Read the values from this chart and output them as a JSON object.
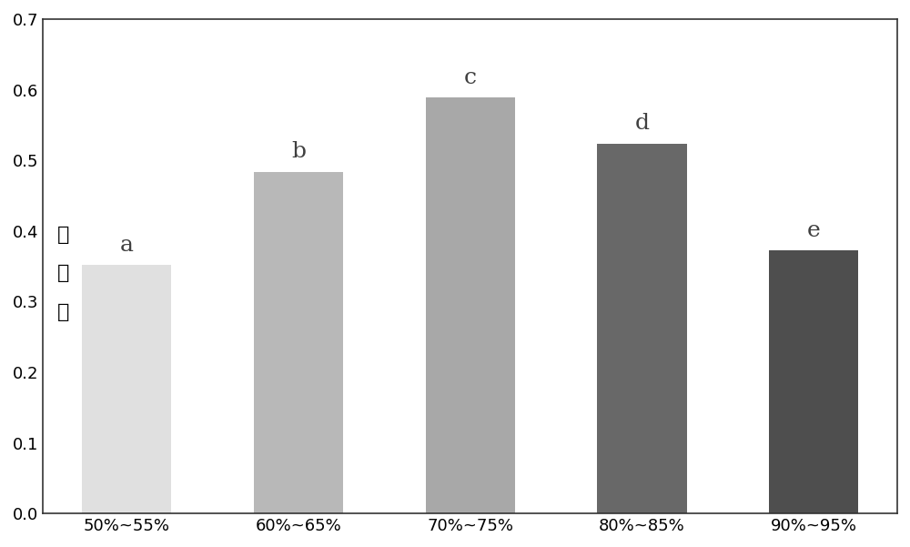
{
  "categories": [
    "50%~55%",
    "60%~65%",
    "70%~75%",
    "80%~85%",
    "90%~95%"
  ],
  "values": [
    0.352,
    0.484,
    0.589,
    0.524,
    0.372
  ],
  "bar_colors": [
    "#e0e0e0",
    "#b8b8b8",
    "#a8a8a8",
    "#686868",
    "#4e4e4e"
  ],
  "labels": [
    "a",
    "b",
    "c",
    "d",
    "e"
  ],
  "ylabel": "去除率",
  "ylim": [
    0,
    0.7
  ],
  "yticks": [
    0,
    0.1,
    0.2,
    0.3,
    0.4,
    0.5,
    0.6,
    0.7
  ],
  "background_color": "#ffffff",
  "label_fontsize": 18,
  "tick_fontsize": 13,
  "ylabel_fontsize": 16
}
